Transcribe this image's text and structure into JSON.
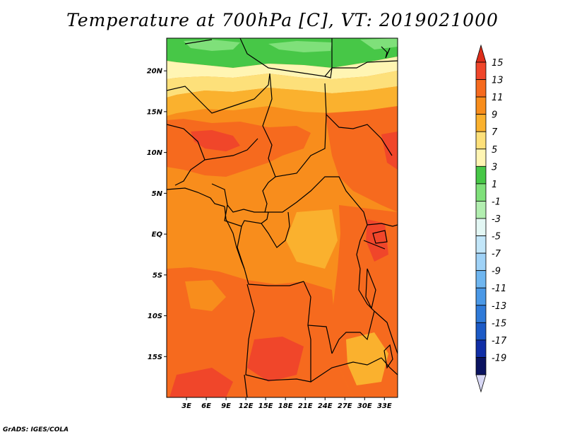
{
  "title": "Temperature at 700hPa [C], VT: 2019021000",
  "credit": "GrADS: IGES/COLA",
  "map": {
    "region": "Central Africa",
    "lon_range": [
      0,
      35
    ],
    "lat_range": [
      -20,
      24
    ],
    "lat_ticks": [
      {
        "lat": 20,
        "label": "20N"
      },
      {
        "lat": 15,
        "label": "15N"
      },
      {
        "lat": 10,
        "label": "10N"
      },
      {
        "lat": 5,
        "label": "5N"
      },
      {
        "lat": 0,
        "label": "EQ"
      },
      {
        "lat": -5,
        "label": "5S"
      },
      {
        "lat": -10,
        "label": "10S"
      },
      {
        "lat": -15,
        "label": "15S"
      }
    ],
    "lon_ticks": [
      {
        "lon": 3,
        "label": "3E"
      },
      {
        "lon": 6,
        "label": "6E"
      },
      {
        "lon": 9,
        "label": "9E"
      },
      {
        "lon": 12,
        "label": "12E"
      },
      {
        "lon": 15,
        "label": "15E"
      },
      {
        "lon": 18,
        "label": "18E"
      },
      {
        "lon": 21,
        "label": "21E"
      },
      {
        "lon": 24,
        "label": "24E"
      },
      {
        "lon": 27,
        "label": "27E"
      },
      {
        "lon": 30,
        "label": "30E"
      },
      {
        "lon": 33,
        "label": "33E"
      }
    ]
  },
  "colorbar": {
    "levels": [
      "15",
      "13",
      "11",
      "9",
      "7",
      "5",
      "3",
      "1",
      "-1",
      "-3",
      "-5",
      "-7",
      "-9",
      "-11",
      "-13",
      "-15",
      "-17",
      "-19"
    ],
    "colors": [
      "#f0462a",
      "#f66a1e",
      "#f88d1c",
      "#fab12e",
      "#fde07a",
      "#fff5b3",
      "#47c747",
      "#7fe07a",
      "#b2eeb0",
      "#e3f7f4",
      "#c2e6f9",
      "#9fd2f7",
      "#6fb6f0",
      "#4a98e6",
      "#2f7ad8",
      "#1c5ac6",
      "#102ea6",
      "#0a1360"
    ],
    "top_arrow_color": "#dd2d1a",
    "bottom_arrow_color": "#d8d8f5"
  },
  "colors": {
    "t15": "#f0462a",
    "t13": "#f66a1e",
    "t11": "#f88d1c",
    "t9": "#fab12e",
    "t7": "#fde07a",
    "t5": "#fff5b3",
    "t3": "#47c747",
    "t1": "#7fe07a"
  }
}
